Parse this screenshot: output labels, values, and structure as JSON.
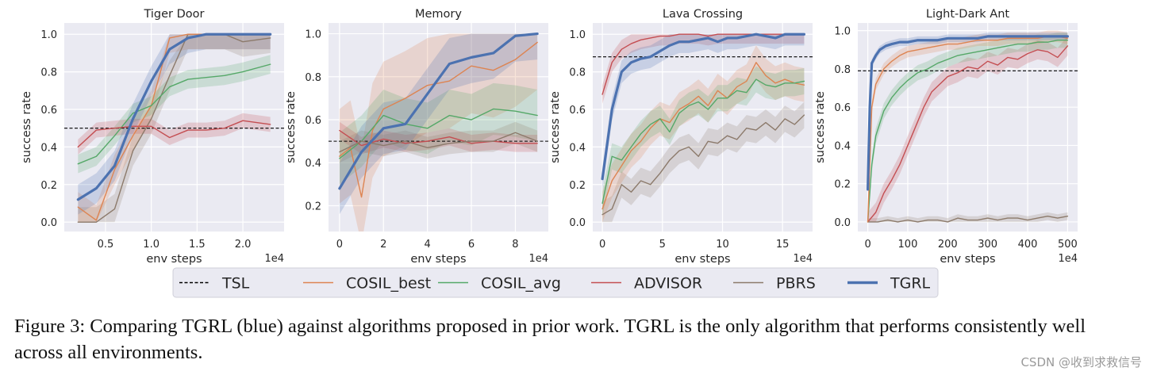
{
  "colors": {
    "TSL": "#000000",
    "COSIL_best": "#dd8452",
    "COSIL_avg": "#55a868",
    "ADVISOR": "#c44e52",
    "PBRS": "#8c7a6b",
    "TGRL": "#4c72b0",
    "panel_bg": "#eaeaf2"
  },
  "legend": {
    "entries": [
      {
        "key": "TSL",
        "label": "TSL",
        "style": "dashed"
      },
      {
        "key": "COSIL_best",
        "label": "COSIL_best",
        "style": "solid"
      },
      {
        "key": "COSIL_avg",
        "label": "COSIL_avg",
        "style": "solid"
      },
      {
        "key": "ADVISOR",
        "label": "ADVISOR",
        "style": "solid"
      },
      {
        "key": "PBRS",
        "label": "PBRS",
        "style": "solid"
      },
      {
        "key": "TGRL",
        "label": "TGRL",
        "style": "thick"
      }
    ]
  },
  "chart_data": [
    {
      "type": "line",
      "title": "Tiger Door",
      "xlabel": "env steps",
      "ylabel": "success rate",
      "x_offset_label": "1e4",
      "xlim": [
        0.05,
        2.45
      ],
      "ylim": [
        -0.05,
        1.06
      ],
      "xticks": [
        0.5,
        1.0,
        1.5,
        2.0
      ],
      "xtick_labels": [
        "0.5",
        "1.0",
        "1.5",
        "2.0"
      ],
      "yticks": [
        0.0,
        0.2,
        0.4,
        0.6,
        0.8,
        1.0
      ],
      "ytick_labels": [
        "0.0",
        "0.2",
        "0.4",
        "0.6",
        "0.8",
        "1.0"
      ],
      "tsl_level": 0.5,
      "series": [
        {
          "key": "PBRS",
          "x": [
            0.2,
            0.4,
            0.6,
            0.8,
            1.0,
            1.2,
            1.4,
            1.6,
            1.8,
            2.0,
            2.3
          ],
          "values": [
            0.0,
            0.0,
            0.07,
            0.38,
            0.55,
            0.78,
            1.0,
            1.0,
            1.0,
            0.96,
            0.98
          ],
          "band": 0.08
        },
        {
          "key": "COSIL_best",
          "x": [
            0.2,
            0.4,
            0.6,
            0.8,
            1.0,
            1.2,
            1.4,
            1.6,
            1.8,
            2.0,
            2.3
          ],
          "values": [
            0.08,
            0.01,
            0.28,
            0.46,
            0.62,
            0.98,
            1.0,
            1.0,
            1.0,
            1.0,
            1.0
          ],
          "band": 0.08
        },
        {
          "key": "COSIL_avg",
          "x": [
            0.2,
            0.4,
            0.6,
            0.8,
            1.0,
            1.2,
            1.4,
            1.6,
            1.8,
            2.0,
            2.3
          ],
          "values": [
            0.31,
            0.35,
            0.46,
            0.58,
            0.62,
            0.72,
            0.76,
            0.77,
            0.78,
            0.8,
            0.84
          ],
          "band": 0.05
        },
        {
          "key": "ADVISOR",
          "x": [
            0.2,
            0.4,
            0.6,
            0.8,
            1.0,
            1.2,
            1.4,
            1.6,
            1.8,
            2.0,
            2.3
          ],
          "values": [
            0.4,
            0.49,
            0.5,
            0.51,
            0.51,
            0.45,
            0.49,
            0.49,
            0.5,
            0.54,
            0.52
          ],
          "band": 0.04
        },
        {
          "key": "TGRL",
          "x": [
            0.2,
            0.4,
            0.6,
            0.8,
            1.0,
            1.2,
            1.4,
            1.6,
            1.8,
            2.0,
            2.3
          ],
          "values": [
            0.12,
            0.18,
            0.3,
            0.55,
            0.75,
            0.92,
            0.98,
            1.0,
            1.0,
            1.0,
            1.0
          ],
          "band": 0.08
        }
      ]
    },
    {
      "type": "line",
      "title": "Memory",
      "xlabel": "env steps",
      "ylabel": "success rate",
      "x_offset_label": "1e4",
      "xlim": [
        -0.5,
        9.5
      ],
      "ylim": [
        0.08,
        1.05
      ],
      "xticks": [
        0,
        2,
        4,
        6,
        8
      ],
      "xtick_labels": [
        "0",
        "2",
        "4",
        "6",
        "8"
      ],
      "yticks": [
        0.2,
        0.4,
        0.6,
        0.8,
        1.0
      ],
      "ytick_labels": [
        "0.2",
        "0.4",
        "0.6",
        "0.8",
        "1.0"
      ],
      "tsl_level": 0.5,
      "series": [
        {
          "key": "COSIL_best",
          "x": [
            0,
            0.5,
            1,
            1.5,
            2,
            3,
            4,
            5,
            6,
            7,
            8,
            9
          ],
          "values": [
            0.43,
            0.47,
            0.24,
            0.55,
            0.65,
            0.7,
            0.76,
            0.78,
            0.85,
            0.83,
            0.88,
            0.96
          ],
          "band": 0.22
        },
        {
          "key": "COSIL_avg",
          "x": [
            0,
            1,
            2,
            3,
            4,
            5,
            6,
            7,
            8,
            9
          ],
          "values": [
            0.42,
            0.5,
            0.62,
            0.58,
            0.56,
            0.62,
            0.6,
            0.65,
            0.64,
            0.62
          ],
          "band": 0.12
        },
        {
          "key": "ADVISOR",
          "x": [
            0,
            1,
            2,
            3,
            4,
            5,
            6,
            7,
            8,
            9
          ],
          "values": [
            0.55,
            0.48,
            0.51,
            0.49,
            0.5,
            0.52,
            0.49,
            0.5,
            0.49,
            0.49
          ],
          "band": 0.04
        },
        {
          "key": "PBRS",
          "x": [
            0,
            1,
            2,
            3,
            4,
            5,
            6,
            7,
            8,
            9
          ],
          "values": [
            0.45,
            0.5,
            0.48,
            0.5,
            0.47,
            0.49,
            0.5,
            0.5,
            0.54,
            0.5
          ],
          "band": 0.05
        },
        {
          "key": "TGRL",
          "x": [
            0,
            1,
            2,
            3,
            4,
            5,
            6,
            7,
            8,
            9
          ],
          "values": [
            0.28,
            0.45,
            0.56,
            0.58,
            0.72,
            0.86,
            0.89,
            0.91,
            0.99,
            1.0
          ],
          "band": 0.12
        }
      ]
    },
    {
      "type": "line",
      "title": "Lava Crossing",
      "xlabel": "env steps",
      "ylabel": "success rate",
      "x_offset_label": "1e4",
      "xlim": [
        -0.8,
        17.5
      ],
      "ylim": [
        -0.05,
        1.06
      ],
      "xticks": [
        0,
        5,
        10,
        15
      ],
      "xtick_labels": [
        "0",
        "5",
        "10",
        "15"
      ],
      "yticks": [
        0.0,
        0.2,
        0.4,
        0.6,
        0.8,
        1.0
      ],
      "ytick_labels": [
        "0.0",
        "0.2",
        "0.4",
        "0.6",
        "0.8",
        "1.0"
      ],
      "tsl_level": 0.88,
      "series": [
        {
          "key": "PBRS",
          "x": [
            0,
            0.8,
            1.6,
            2.4,
            3.2,
            4.0,
            4.8,
            5.6,
            6.4,
            7.2,
            8.0,
            8.8,
            9.6,
            10.4,
            11.2,
            12.0,
            12.8,
            13.6,
            14.4,
            15.2,
            16.0,
            16.8
          ],
          "values": [
            0.04,
            0.07,
            0.2,
            0.16,
            0.22,
            0.2,
            0.26,
            0.33,
            0.38,
            0.4,
            0.35,
            0.43,
            0.42,
            0.46,
            0.44,
            0.5,
            0.49,
            0.53,
            0.49,
            0.55,
            0.52,
            0.57
          ],
          "band": 0.07
        },
        {
          "key": "COSIL_best",
          "x": [
            0,
            0.8,
            1.6,
            2.4,
            3.2,
            4.0,
            4.8,
            5.6,
            6.4,
            7.2,
            8.0,
            8.8,
            9.6,
            10.4,
            11.2,
            12.0,
            12.8,
            13.6,
            14.4,
            15.2,
            16.0,
            16.8
          ],
          "values": [
            0.07,
            0.22,
            0.3,
            0.38,
            0.43,
            0.5,
            0.55,
            0.53,
            0.6,
            0.63,
            0.67,
            0.62,
            0.7,
            0.66,
            0.72,
            0.75,
            0.85,
            0.78,
            0.74,
            0.76,
            0.74,
            0.73
          ],
          "band": 0.09
        },
        {
          "key": "COSIL_avg",
          "x": [
            0,
            0.8,
            1.6,
            2.4,
            3.2,
            4.0,
            4.8,
            5.6,
            6.4,
            7.2,
            8.0,
            8.8,
            9.6,
            10.4,
            11.2,
            12.0,
            12.8,
            13.6,
            14.4,
            15.2,
            16.0,
            16.8
          ],
          "values": [
            0.1,
            0.35,
            0.33,
            0.4,
            0.47,
            0.52,
            0.55,
            0.48,
            0.58,
            0.62,
            0.64,
            0.6,
            0.66,
            0.66,
            0.7,
            0.69,
            0.76,
            0.73,
            0.72,
            0.74,
            0.74,
            0.75
          ],
          "band": 0.07
        },
        {
          "key": "ADVISOR",
          "x": [
            0,
            0.8,
            1.6,
            2.4,
            3.2,
            4.0,
            4.8,
            5.6,
            6.4,
            7.2,
            8.0,
            8.8,
            9.6,
            10.4,
            11.2,
            12.0,
            12.8,
            13.6,
            14.4,
            15.2,
            16.0,
            16.8
          ],
          "values": [
            0.68,
            0.85,
            0.92,
            0.95,
            0.97,
            0.98,
            0.99,
            0.99,
            1.0,
            1.0,
            1.0,
            0.99,
            1.0,
            1.0,
            1.0,
            1.0,
            1.0,
            1.0,
            1.0,
            1.0,
            1.0,
            1.0
          ],
          "band": 0.05
        },
        {
          "key": "TGRL",
          "x": [
            0,
            0.8,
            1.6,
            2.4,
            3.2,
            4.0,
            4.8,
            5.6,
            6.4,
            7.2,
            8.0,
            8.8,
            9.6,
            10.4,
            11.2,
            12.0,
            12.8,
            13.6,
            14.4,
            15.2,
            16.0,
            16.8
          ],
          "values": [
            0.23,
            0.6,
            0.8,
            0.85,
            0.87,
            0.88,
            0.91,
            0.94,
            0.96,
            0.96,
            0.97,
            0.98,
            0.96,
            0.98,
            0.98,
            0.99,
            1.0,
            0.99,
            0.98,
            1.0,
            1.0,
            1.0
          ],
          "band": 0.06
        }
      ]
    },
    {
      "type": "line",
      "title": "Light-Dark Ant",
      "xlabel": "env steps",
      "ylabel": "success rate",
      "x_offset_label": "1e4",
      "xlim": [
        -25,
        525
      ],
      "ylim": [
        -0.05,
        1.04
      ],
      "xticks": [
        0,
        100,
        200,
        300,
        400,
        500
      ],
      "xtick_labels": [
        "0",
        "100",
        "200",
        "300",
        "400",
        "500"
      ],
      "yticks": [
        0.0,
        0.2,
        0.4,
        0.6,
        0.8,
        1.0
      ],
      "ytick_labels": [
        "0.0",
        "0.2",
        "0.4",
        "0.6",
        "0.8",
        "1.0"
      ],
      "tsl_level": 0.79,
      "series": [
        {
          "key": "PBRS",
          "x": [
            0,
            25,
            50,
            75,
            100,
            125,
            150,
            175,
            200,
            225,
            250,
            275,
            300,
            325,
            350,
            375,
            400,
            425,
            450,
            475,
            500
          ],
          "values": [
            0.0,
            0.0,
            0.01,
            0.0,
            0.01,
            0.0,
            0.01,
            0.01,
            0.0,
            0.02,
            0.01,
            0.01,
            0.02,
            0.01,
            0.02,
            0.02,
            0.01,
            0.02,
            0.03,
            0.02,
            0.03
          ],
          "band": 0.02
        },
        {
          "key": "ADVISOR",
          "x": [
            0,
            20,
            40,
            60,
            80,
            100,
            120,
            140,
            160,
            180,
            200,
            225,
            250,
            275,
            300,
            325,
            350,
            375,
            400,
            425,
            450,
            475,
            500
          ],
          "values": [
            0.0,
            0.05,
            0.15,
            0.22,
            0.3,
            0.4,
            0.5,
            0.6,
            0.68,
            0.72,
            0.76,
            0.78,
            0.81,
            0.8,
            0.84,
            0.82,
            0.86,
            0.85,
            0.88,
            0.9,
            0.89,
            0.86,
            0.92
          ],
          "band": 0.05
        },
        {
          "key": "COSIL_avg",
          "x": [
            0,
            10,
            20,
            40,
            60,
            80,
            100,
            125,
            150,
            175,
            200,
            225,
            250,
            275,
            300,
            325,
            350,
            375,
            400,
            425,
            450,
            475,
            500
          ],
          "values": [
            0.0,
            0.3,
            0.45,
            0.58,
            0.65,
            0.7,
            0.74,
            0.78,
            0.8,
            0.83,
            0.85,
            0.87,
            0.88,
            0.89,
            0.9,
            0.91,
            0.92,
            0.93,
            0.93,
            0.94,
            0.94,
            0.95,
            0.95
          ],
          "band": 0.04
        },
        {
          "key": "COSIL_best",
          "x": [
            0,
            10,
            20,
            40,
            60,
            80,
            100,
            125,
            150,
            175,
            200,
            225,
            250,
            275,
            300,
            325,
            350,
            375,
            400,
            425,
            450,
            475,
            500
          ],
          "values": [
            0.0,
            0.6,
            0.72,
            0.8,
            0.84,
            0.87,
            0.89,
            0.9,
            0.91,
            0.92,
            0.93,
            0.93,
            0.94,
            0.95,
            0.95,
            0.95,
            0.96,
            0.96,
            0.96,
            0.96,
            0.97,
            0.97,
            0.96
          ],
          "band": 0.03
        },
        {
          "key": "TGRL",
          "x": [
            0,
            5,
            10,
            20,
            30,
            45,
            60,
            80,
            100,
            125,
            150,
            175,
            200,
            225,
            250,
            275,
            300,
            325,
            350,
            375,
            400,
            425,
            450,
            475,
            500
          ],
          "values": [
            0.17,
            0.6,
            0.83,
            0.87,
            0.9,
            0.92,
            0.93,
            0.94,
            0.94,
            0.95,
            0.95,
            0.95,
            0.96,
            0.96,
            0.96,
            0.96,
            0.97,
            0.97,
            0.97,
            0.97,
            0.97,
            0.97,
            0.97,
            0.97,
            0.97
          ],
          "band": 0.02
        }
      ]
    }
  ],
  "caption": "Figure 3: Comparing TGRL (blue) against algorithms proposed in prior work. TGRL is the only algorithm that performs consistently well across all environments.",
  "watermark": "CSDN @收到求救信号"
}
